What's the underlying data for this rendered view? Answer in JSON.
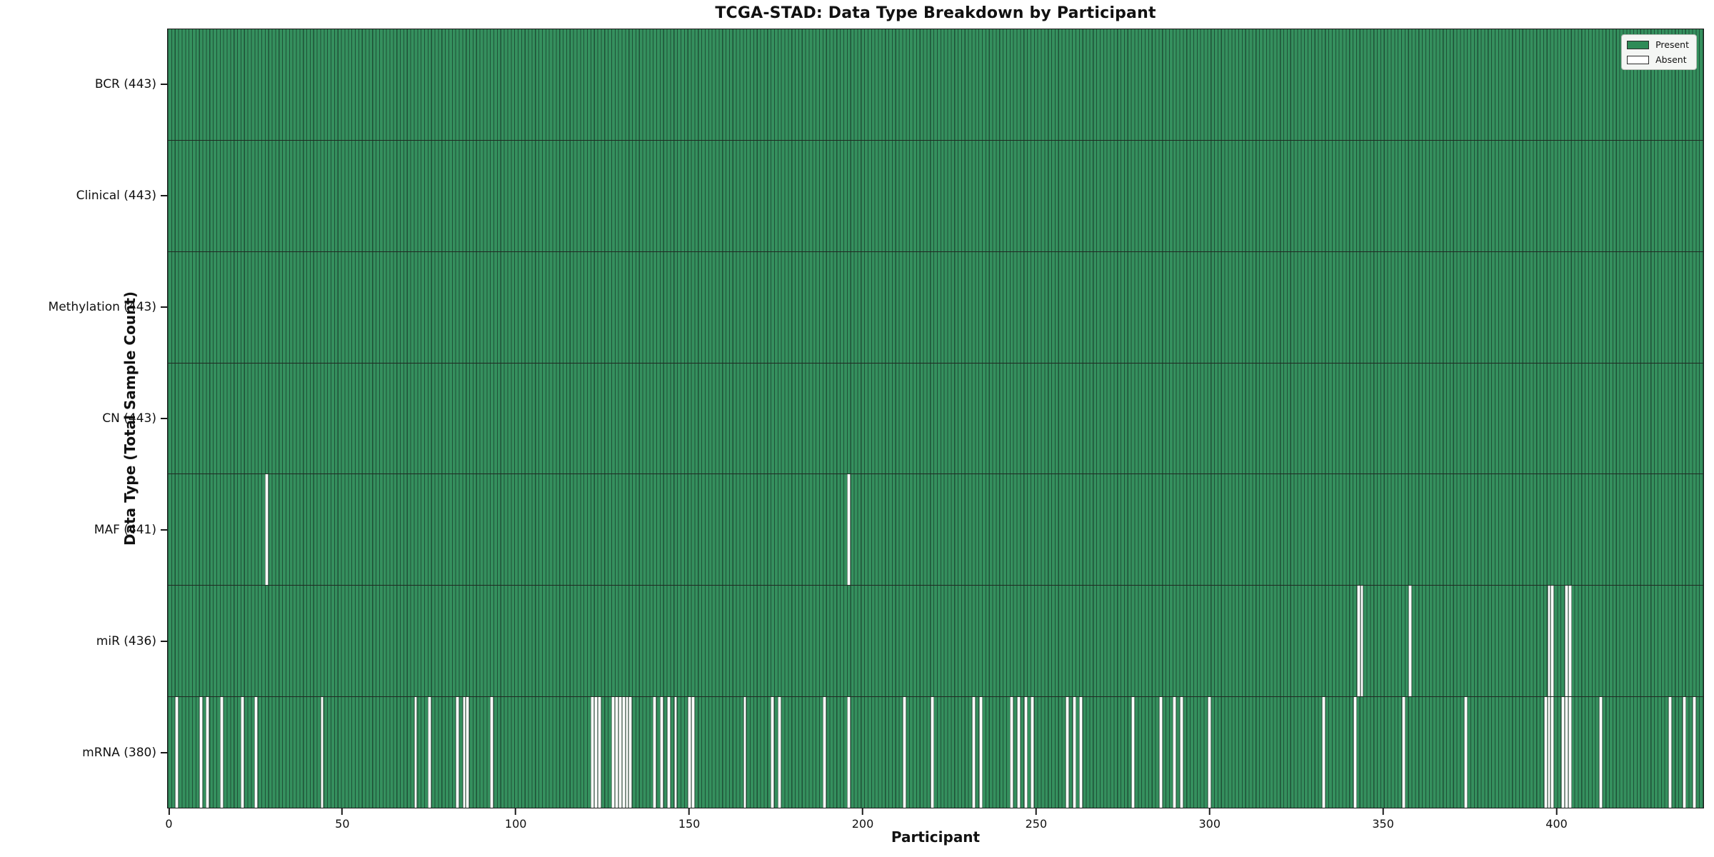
{
  "chart_data": {
    "type": "heatmap",
    "title": "TCGA-STAD: Data Type Breakdown by Participant",
    "xlabel": "Participant",
    "ylabel": "Data Type (Total Sample Count)",
    "n_participants": 443,
    "x_ticks": [
      0,
      50,
      100,
      150,
      200,
      250,
      300,
      350,
      400
    ],
    "grid": false,
    "legend": {
      "position": "upper right",
      "entries": [
        {
          "label": "Present",
          "color": "#2e8b57"
        },
        {
          "label": "Absent",
          "color": "#ffffff"
        }
      ]
    },
    "colors": {
      "present_fill": "#35905e",
      "bar_edge": "#1e5137",
      "absent_fill": "#ffffff",
      "separator": "#1f2a22",
      "axis": "#1a1a1a",
      "legend_bg": "#f4f6f4"
    },
    "rows": [
      {
        "label": "BCR",
        "total": 443,
        "display": "BCR (443)",
        "absent": []
      },
      {
        "label": "Clinical",
        "total": 443,
        "display": "Clinical (443)",
        "absent": []
      },
      {
        "label": "Methylation",
        "total": 443,
        "display": "Methylation (443)",
        "absent": []
      },
      {
        "label": "CN",
        "total": 443,
        "display": "CN (443)",
        "absent": []
      },
      {
        "label": "MAF",
        "total": 441,
        "display": "MAF (441)",
        "absent": [
          28,
          196
        ]
      },
      {
        "label": "miR",
        "total": 436,
        "display": "miR (436)",
        "absent": [
          343,
          344,
          358,
          398,
          399,
          403,
          404
        ]
      },
      {
        "label": "mRNA",
        "total": 380,
        "display": "mRNA (380)",
        "absent": [
          2,
          9,
          11,
          15,
          21,
          25,
          44,
          71,
          75,
          83,
          85,
          86,
          93,
          122,
          123,
          124,
          128,
          129,
          130,
          131,
          132,
          133,
          140,
          142,
          144,
          146,
          150,
          151,
          166,
          174,
          176,
          189,
          196,
          212,
          220,
          232,
          234,
          243,
          245,
          247,
          249,
          259,
          261,
          263,
          278,
          286,
          290,
          292,
          300,
          333,
          342,
          356,
          374,
          397,
          398,
          399,
          402,
          403,
          404,
          413,
          433,
          437,
          440
        ]
      }
    ]
  }
}
